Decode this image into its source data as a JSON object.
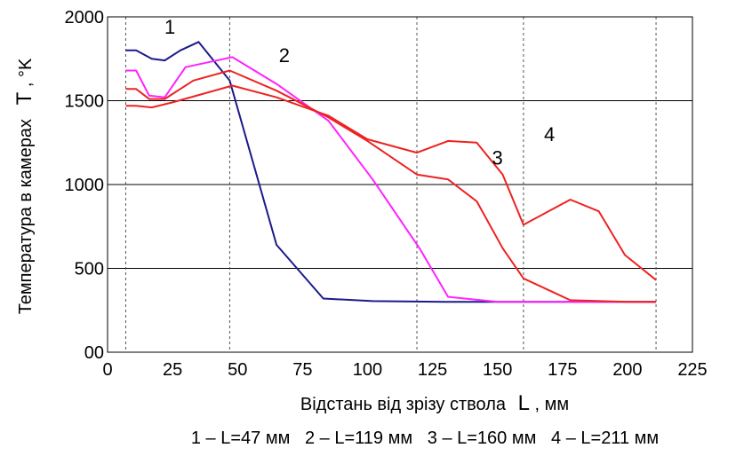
{
  "chart_data": {
    "type": "line",
    "xlabel": "Відстань від зрізу ствола",
    "xlabel_symbol": "L",
    "xlabel_unit": ", мм",
    "ylabel": "Температура в камерах",
    "ylabel_symbol": "T",
    "ylabel_unit": ", °K",
    "xlim": [
      0,
      225
    ],
    "ylim": [
      0,
      2000
    ],
    "xticks": [
      0,
      25,
      50,
      75,
      100,
      125,
      150,
      175,
      200,
      225
    ],
    "xtick_labels": [
      "0",
      "25",
      "50",
      "75",
      "100",
      "125",
      "150",
      "175",
      "200",
      "225"
    ],
    "yticks": [
      0,
      500,
      1000,
      1500,
      2000
    ],
    "ytick_labels": [
      "00",
      "500",
      "1000",
      "1500",
      "2000"
    ],
    "grid": "horizontal gridlines at 500, 1000, 1500",
    "vertical_markers": [
      7,
      47,
      119,
      160,
      211
    ],
    "caption": "1 – L=47 мм   2 – L=119 мм   3 – L=160 мм   4 – L=211 мм",
    "series": [
      {
        "label": "1",
        "color": "#1a1a8c",
        "x": [
          7,
          11,
          17,
          22,
          28,
          35,
          47,
          65,
          83,
          102,
          130,
          211
        ],
        "y": [
          1800,
          1800,
          1750,
          1740,
          1800,
          1850,
          1620,
          640,
          320,
          305,
          300,
          300
        ]
      },
      {
        "label": "2",
        "color": "#ff22ff",
        "x": [
          7,
          11,
          16,
          22,
          30,
          48,
          65,
          85,
          102,
          120,
          131,
          150,
          211
        ],
        "y": [
          1680,
          1680,
          1530,
          1520,
          1700,
          1760,
          1600,
          1380,
          1030,
          620,
          330,
          300,
          300
        ]
      },
      {
        "label": "3",
        "color": "#ee2222",
        "x": [
          7,
          11,
          16,
          22,
          33,
          47,
          65,
          85,
          100,
          119,
          131,
          142,
          152,
          160,
          178,
          200,
          211
        ],
        "y": [
          1570,
          1570,
          1510,
          1510,
          1620,
          1680,
          1560,
          1400,
          1260,
          1060,
          1030,
          900,
          620,
          440,
          310,
          300,
          300
        ]
      },
      {
        "label": "4",
        "color": "#ee2222",
        "x": [
          7,
          11,
          17,
          25,
          48,
          65,
          85,
          100,
          119,
          131,
          142,
          152,
          160,
          178,
          189,
          199,
          211
        ],
        "y": [
          1470,
          1470,
          1460,
          1490,
          1590,
          1520,
          1410,
          1270,
          1190,
          1260,
          1250,
          1060,
          760,
          910,
          840,
          580,
          430
        ]
      }
    ],
    "curve_labels": [
      {
        "text": "1",
        "x": 24,
        "y": 1900
      },
      {
        "text": "2",
        "x": 68,
        "y": 1730
      },
      {
        "text": "3",
        "x": 150,
        "y": 1120
      },
      {
        "text": "4",
        "x": 170,
        "y": 1260
      }
    ]
  }
}
